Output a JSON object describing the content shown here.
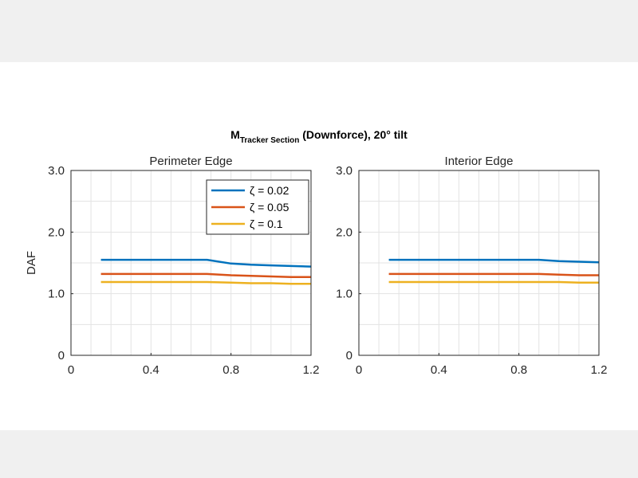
{
  "figure": {
    "title_main": "M",
    "title_sub": "Tracker Section",
    "title_rest": " (Downforce), 20° tilt"
  },
  "chart_data": [
    {
      "type": "line",
      "title": "Perimeter Edge",
      "ylabel": "DAF",
      "xlim": [
        0,
        1.2
      ],
      "ylim": [
        0,
        3
      ],
      "xticks": [
        0,
        0.4,
        0.8,
        1.2
      ],
      "xtick_labels": [
        "0",
        "0.4",
        "0.8",
        "1.2"
      ],
      "yticks": [
        0,
        1,
        2,
        3
      ],
      "ytick_labels": [
        "0",
        "1.0",
        "2.0",
        "3.0"
      ],
      "grid": true,
      "legend": "top-right",
      "series": [
        {
          "name": "ζ = 0.02",
          "color": "#0072BD",
          "x": [
            0.15,
            0.4,
            0.68,
            0.8,
            0.9,
            1.0,
            1.1,
            1.2
          ],
          "y": [
            1.55,
            1.55,
            1.55,
            1.49,
            1.47,
            1.46,
            1.45,
            1.44
          ]
        },
        {
          "name": "ζ = 0.05",
          "color": "#D95319",
          "x": [
            0.15,
            0.4,
            0.68,
            0.8,
            0.9,
            1.0,
            1.1,
            1.2
          ],
          "y": [
            1.32,
            1.32,
            1.32,
            1.3,
            1.29,
            1.28,
            1.27,
            1.27
          ]
        },
        {
          "name": "ζ = 0.1",
          "color": "#EDB120",
          "x": [
            0.15,
            0.4,
            0.68,
            0.8,
            0.9,
            1.0,
            1.1,
            1.2
          ],
          "y": [
            1.19,
            1.19,
            1.19,
            1.18,
            1.17,
            1.17,
            1.16,
            1.16
          ]
        }
      ]
    },
    {
      "type": "line",
      "title": "Interior Edge",
      "ylabel": "",
      "xlim": [
        0,
        1.2
      ],
      "ylim": [
        0,
        3
      ],
      "xticks": [
        0,
        0.4,
        0.8,
        1.2
      ],
      "xtick_labels": [
        "0",
        "0.4",
        "0.8",
        "1.2"
      ],
      "yticks": [
        0,
        1,
        2,
        3
      ],
      "ytick_labels": [
        "0",
        "1.0",
        "2.0",
        "3.0"
      ],
      "grid": true,
      "legend": "",
      "series": [
        {
          "name": "",
          "color": "#0072BD",
          "x": [
            0.15,
            0.4,
            0.6,
            0.9,
            1.0,
            1.1,
            1.2
          ],
          "y": [
            1.55,
            1.55,
            1.55,
            1.55,
            1.53,
            1.52,
            1.51
          ]
        },
        {
          "name": "",
          "color": "#D95319",
          "x": [
            0.15,
            0.4,
            0.6,
            0.9,
            1.0,
            1.1,
            1.2
          ],
          "y": [
            1.32,
            1.32,
            1.32,
            1.32,
            1.31,
            1.3,
            1.3
          ]
        },
        {
          "name": "",
          "color": "#EDB120",
          "x": [
            0.15,
            0.4,
            0.6,
            0.9,
            1.0,
            1.1,
            1.2
          ],
          "y": [
            1.19,
            1.19,
            1.19,
            1.19,
            1.19,
            1.18,
            1.18
          ]
        }
      ]
    }
  ]
}
